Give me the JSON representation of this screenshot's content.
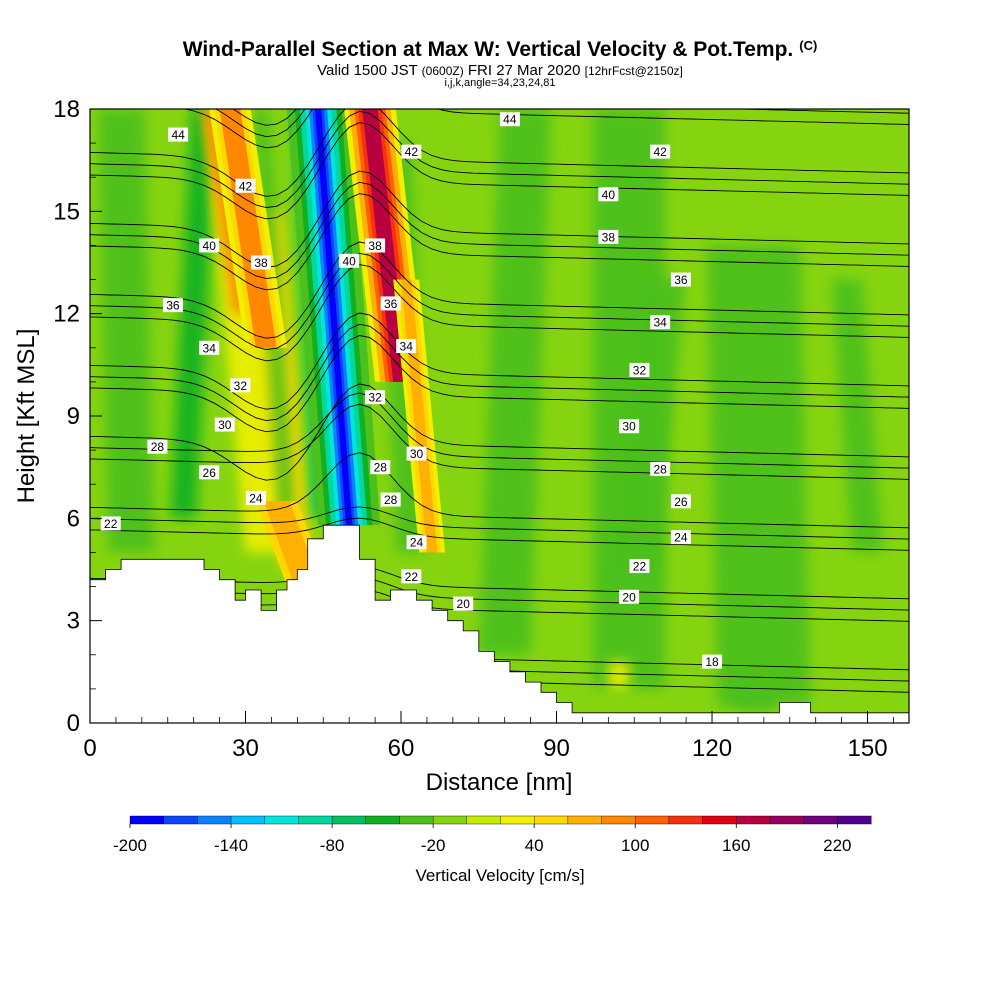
{
  "header": {
    "title": "Wind-Parallel Section at Max W: Vertical Velocity & Pot.Temp.",
    "copyright_mark": "(C)",
    "valid_prefix": "Valid 1500 JST",
    "valid_utc": "(0600Z)",
    "valid_date": "FRI 27 Mar 2020",
    "valid_fcst": "[12hrFcst@2150z]",
    "indices": "i,j,k,angle=34,23,24,81"
  },
  "chart_data": {
    "type": "heatmap",
    "description": "cross-section contour plot",
    "xlabel": "Distance [nm]",
    "ylabel": "Height [Kft MSL]",
    "xlim": [
      0,
      158
    ],
    "ylim": [
      0,
      18
    ],
    "xticks": [
      0,
      30,
      60,
      90,
      120,
      150
    ],
    "yticks": [
      0,
      3,
      6,
      9,
      12,
      15,
      18
    ],
    "colorbar": {
      "label": "Vertical Velocity [cm/s]",
      "tick_labels": [
        "-200",
        "-140",
        "-80",
        "-20",
        "40",
        "100",
        "160",
        "220"
      ],
      "tick_values": [
        -200,
        -140,
        -80,
        -20,
        40,
        100,
        160,
        220
      ],
      "min": -200,
      "max": 240,
      "colors": [
        "#0000ff",
        "#0a46ff",
        "#0a82ff",
        "#00c0ff",
        "#00e6dc",
        "#00d8a0",
        "#00c060",
        "#10b020",
        "#4cc01c",
        "#86d410",
        "#c8ec00",
        "#f0f000",
        "#ffd800",
        "#ffb000",
        "#ff8800",
        "#ff6000",
        "#f83010",
        "#e00010",
        "#b80040",
        "#980060",
        "#700080",
        "#500090"
      ]
    },
    "velocity_field": {
      "units": "cm/s",
      "background": -10,
      "features": [
        {
          "label": "downdraft core",
          "x": 49.5,
          "y_range": [
            5.8,
            14
          ],
          "value": -200
        },
        {
          "label": "updraft core",
          "x": 55,
          "y_range": [
            11,
            18
          ],
          "value": 170
        },
        {
          "label": "upstream updraft band",
          "x": 28,
          "y_range": [
            12,
            18
          ],
          "value": 80
        },
        {
          "label": "lee updraft",
          "x": 65,
          "y_range": [
            5,
            13
          ],
          "value": 60
        }
      ]
    },
    "terrain_kft": {
      "x": [
        0,
        3,
        3,
        6,
        6,
        22,
        22,
        25,
        25,
        28,
        28,
        30,
        30,
        33,
        33,
        36,
        36,
        38,
        38,
        40,
        40,
        42,
        42,
        45,
        45,
        52,
        52,
        55,
        55,
        58,
        58,
        63,
        63,
        66,
        66,
        69,
        69,
        72,
        72,
        75,
        75,
        78,
        78,
        81,
        81,
        84,
        84,
        87,
        87,
        90,
        90,
        93,
        93,
        133,
        133,
        139,
        139,
        158
      ],
      "y": [
        4.2,
        4.2,
        4.5,
        4.5,
        4.8,
        4.8,
        4.5,
        4.5,
        4.2,
        4.2,
        3.6,
        3.6,
        3.9,
        3.9,
        3.3,
        3.3,
        3.9,
        3.9,
        4.2,
        4.2,
        4.5,
        4.5,
        5.4,
        5.4,
        5.8,
        5.8,
        4.8,
        4.8,
        3.6,
        3.6,
        3.9,
        3.9,
        3.6,
        3.6,
        3.3,
        3.3,
        3.0,
        3.0,
        2.7,
        2.7,
        2.1,
        2.1,
        1.8,
        1.8,
        1.5,
        1.5,
        1.2,
        1.2,
        0.9,
        0.9,
        0.6,
        0.6,
        0.3,
        0.3,
        0.6,
        0.6,
        0.3,
        0.3
      ]
    },
    "theta_contours": {
      "levels": [
        18,
        20,
        22,
        24,
        26,
        28,
        30,
        32,
        34,
        36,
        38,
        40,
        42,
        44
      ],
      "labels": [
        {
          "text": "44",
          "x": 17,
          "y": 17.25
        },
        {
          "text": "42",
          "x": 30,
          "y": 15.75
        },
        {
          "text": "40",
          "x": 23,
          "y": 14.0
        },
        {
          "text": "38",
          "x": 33,
          "y": 13.5
        },
        {
          "text": "36",
          "x": 16,
          "y": 12.25
        },
        {
          "text": "34",
          "x": 23,
          "y": 11.0
        },
        {
          "text": "32",
          "x": 29,
          "y": 9.9
        },
        {
          "text": "30",
          "x": 26,
          "y": 8.75
        },
        {
          "text": "28",
          "x": 13,
          "y": 8.1
        },
        {
          "text": "26",
          "x": 23,
          "y": 7.35
        },
        {
          "text": "24",
          "x": 32,
          "y": 6.6
        },
        {
          "text": "22",
          "x": 4,
          "y": 5.85
        },
        {
          "text": "44",
          "x": 81,
          "y": 17.7
        },
        {
          "text": "42",
          "x": 62,
          "y": 16.75
        },
        {
          "text": "40",
          "x": 50,
          "y": 13.55
        },
        {
          "text": "38",
          "x": 55,
          "y": 14.0
        },
        {
          "text": "36",
          "x": 58,
          "y": 12.3
        },
        {
          "text": "34",
          "x": 61,
          "y": 11.05
        },
        {
          "text": "32",
          "x": 55,
          "y": 9.55
        },
        {
          "text": "30",
          "x": 63,
          "y": 7.9
        },
        {
          "text": "28",
          "x": 56,
          "y": 7.5
        },
        {
          "text": "28",
          "x": 58,
          "y": 6.55
        },
        {
          "text": "24",
          "x": 63,
          "y": 5.3
        },
        {
          "text": "22",
          "x": 62,
          "y": 4.3
        },
        {
          "text": "20",
          "x": 72,
          "y": 3.5
        },
        {
          "text": "42",
          "x": 110,
          "y": 16.75
        },
        {
          "text": "40",
          "x": 100,
          "y": 15.5
        },
        {
          "text": "38",
          "x": 100,
          "y": 14.25
        },
        {
          "text": "36",
          "x": 114,
          "y": 13.0
        },
        {
          "text": "34",
          "x": 110,
          "y": 11.75
        },
        {
          "text": "32",
          "x": 106,
          "y": 10.35
        },
        {
          "text": "30",
          "x": 104,
          "y": 8.7
        },
        {
          "text": "28",
          "x": 110,
          "y": 7.45
        },
        {
          "text": "26",
          "x": 114,
          "y": 6.5
        },
        {
          "text": "24",
          "x": 114,
          "y": 5.45
        },
        {
          "text": "22",
          "x": 106,
          "y": 4.6
        },
        {
          "text": "20",
          "x": 104,
          "y": 3.7
        },
        {
          "text": "18",
          "x": 120,
          "y": 1.8
        }
      ]
    }
  }
}
